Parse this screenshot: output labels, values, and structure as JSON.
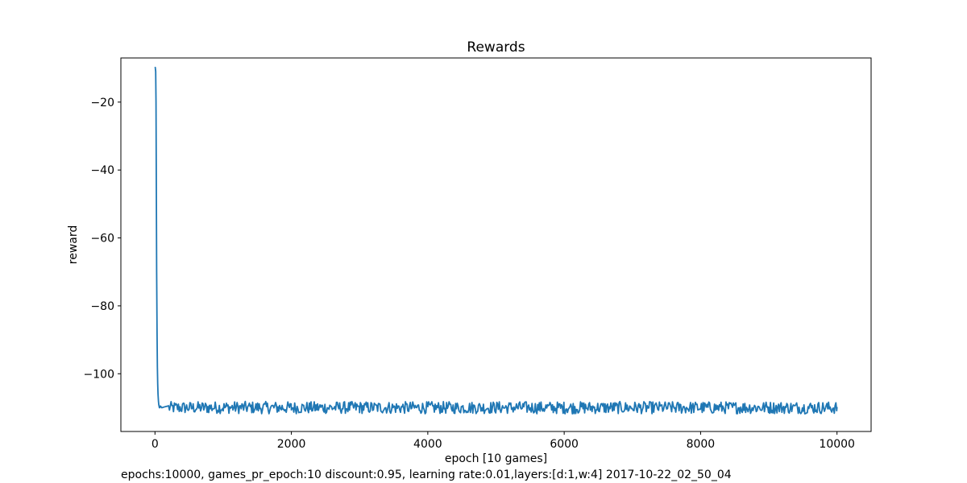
{
  "chart_data": {
    "type": "line",
    "title": "Rewards",
    "xlabel": "epoch [10 games]",
    "ylabel": "reward",
    "xlim": [
      -500,
      10500
    ],
    "ylim": [
      -117,
      -7
    ],
    "xticks": [
      0,
      2000,
      4000,
      6000,
      8000,
      10000
    ],
    "xtick_labels": [
      "0",
      "2000",
      "4000",
      "6000",
      "8000",
      "10000"
    ],
    "yticks": [
      -20,
      -40,
      -60,
      -80,
      -100
    ],
    "ytick_labels": [
      "−20",
      "−40",
      "−60",
      "−80",
      "−100"
    ],
    "grid": false,
    "legend": "none",
    "series": [
      {
        "color": "#1f77b4",
        "x": [
          0,
          5,
          10,
          15,
          20,
          25,
          30,
          35,
          40,
          45,
          50,
          55,
          60,
          65,
          70,
          80,
          100,
          150,
          200,
          500,
          1000,
          2000,
          3000,
          4000,
          5000,
          6000,
          7000,
          8000,
          9000,
          10000
        ],
        "y": [
          -10,
          -9.8,
          -11,
          -20,
          -45,
          -70,
          -88,
          -98,
          -103,
          -106,
          -108,
          -109,
          -109.5,
          -110,
          -110,
          -109.5,
          -110,
          -109.7,
          -110,
          -110,
          -109.6,
          -110,
          -109.8,
          -110,
          -109.7,
          -110,
          -109.9,
          -110,
          -109.8,
          -110
        ],
        "noise_band": [
          -112,
          -108
        ]
      }
    ]
  },
  "footnote": "epochs:10000, games_pr_epoch:10 discount:0.95, learning rate:0.01,layers:[d:1,w:4] 2017-10-22_02_50_04"
}
